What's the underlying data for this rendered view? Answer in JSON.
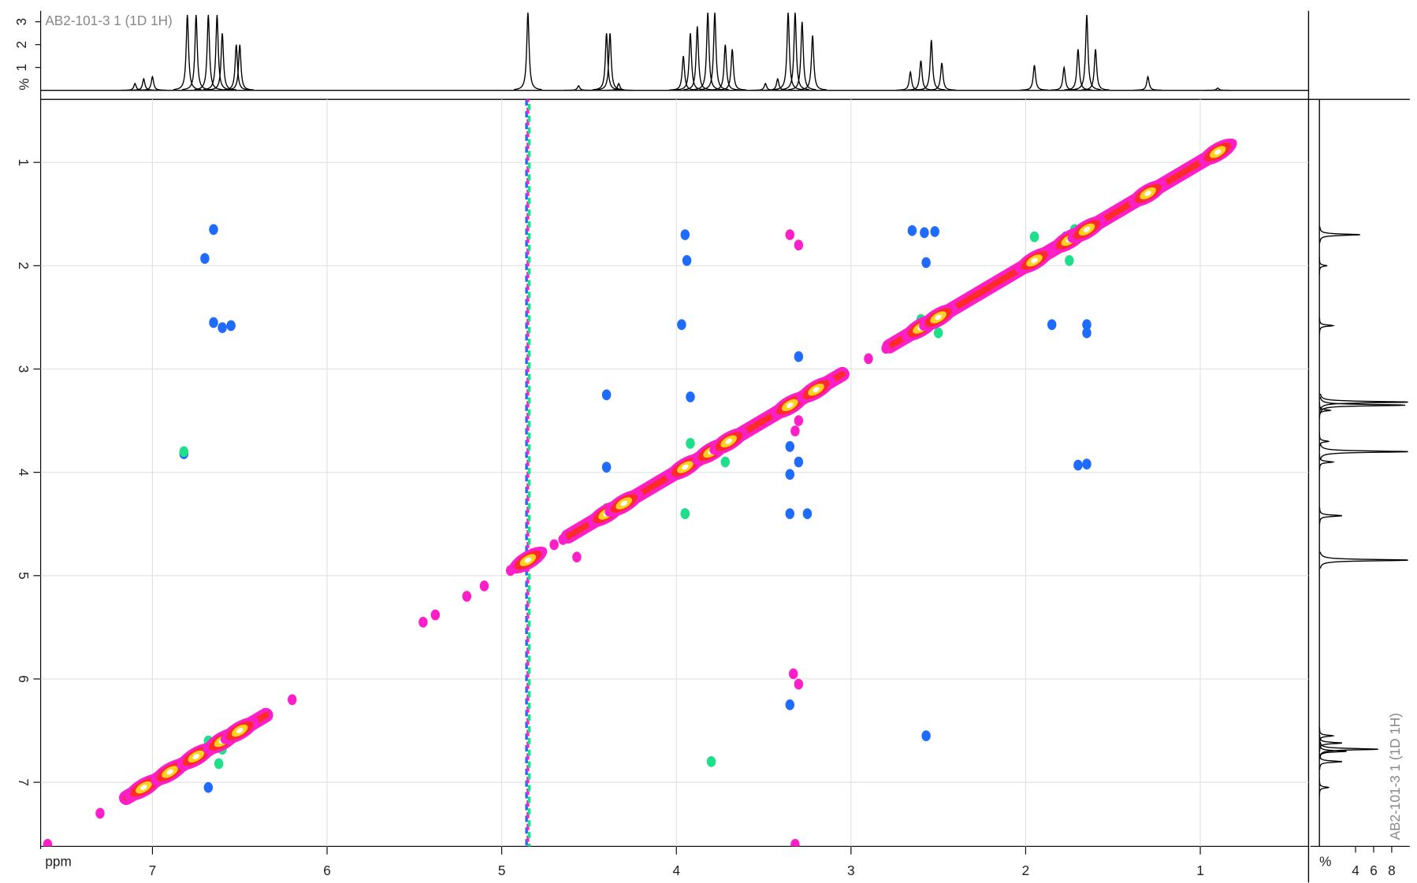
{
  "chart_data": {
    "type": "scatter",
    "title": "AB2-101-3 1 (1D 1H)",
    "x_label": "ppm",
    "xlim": [
      7.64,
      0.38
    ],
    "ylim": [
      0.39,
      7.62
    ],
    "xticks": [
      1,
      2,
      3,
      4,
      5,
      6,
      7
    ],
    "yticks": [
      1,
      2,
      3,
      4,
      5,
      6,
      7
    ],
    "grid": true,
    "series": [
      {
        "color": "#1f6bff",
        "x": [
          6.65,
          6.7,
          6.65,
          6.6,
          6.55,
          6.82,
          6.68,
          3.95,
          3.94,
          3.97,
          2.65,
          2.58,
          2.52,
          2.57,
          1.77,
          1.65,
          1.65,
          1.65,
          1.7,
          1.85,
          4.4,
          4.4,
          3.92,
          3.35,
          3.3,
          3.35,
          3.25,
          3.95,
          3.35,
          2.57,
          3.3,
          3.35
        ],
        "y": [
          1.65,
          1.93,
          2.55,
          2.6,
          2.58,
          3.82,
          7.05,
          1.7,
          1.95,
          2.57,
          1.66,
          1.68,
          1.67,
          1.97,
          1.72,
          2.57,
          2.65,
          3.92,
          3.93,
          2.57,
          3.25,
          3.95,
          3.27,
          3.75,
          3.9,
          4.4,
          4.4,
          4.4,
          6.25,
          6.55,
          2.88,
          4.02
        ]
      },
      {
        "color": "#1fe08a",
        "x": [
          6.68,
          6.62,
          3.92,
          3.72,
          1.95,
          1.75,
          1.72,
          2.6,
          2.5,
          3.95,
          3.8,
          6.82,
          4.4,
          6.6
        ],
        "y": [
          6.6,
          6.82,
          3.72,
          3.9,
          1.72,
          1.95,
          1.65,
          2.52,
          2.65,
          4.4,
          6.8,
          3.8,
          4.35,
          6.68
        ]
      },
      {
        "color": "#ff1fc8",
        "x": [
          3.35,
          3.3,
          4.57,
          3.3,
          3.33,
          3.32,
          3.32,
          3.3,
          7.6,
          7.3,
          6.2,
          5.45,
          5.38,
          5.2,
          5.1,
          4.95,
          4.7,
          4.65,
          2.9,
          2.8
        ],
        "y": [
          1.7,
          1.8,
          4.82,
          6.05,
          5.95,
          7.6,
          3.6,
          3.5,
          7.6,
          7.3,
          6.2,
          5.45,
          5.38,
          5.2,
          5.1,
          4.95,
          4.7,
          4.65,
          2.9,
          2.8
        ]
      }
    ],
    "diagonal": {
      "colors": [
        "#ff1fc8",
        "#ff2a2a",
        "#ffd21f",
        "#ffffff"
      ],
      "x": [
        7.05,
        6.9,
        6.75,
        6.6,
        6.5,
        4.85,
        4.4,
        4.3,
        3.95,
        3.8,
        3.7,
        3.35,
        3.2,
        2.6,
        2.5,
        1.95,
        1.75,
        1.65,
        1.3,
        0.9
      ]
    },
    "diagonal_bands": [
      [
        7.15,
        6.35
      ],
      [
        4.62,
        3.05
      ],
      [
        2.78,
        0.85
      ]
    ],
    "ridge": {
      "x": 4.85,
      "colors": [
        "#1f6bff",
        "#ff1fc8",
        "#1fe08a"
      ]
    },
    "top_trace": {
      "label": "%",
      "ylim": [
        0,
        3.4
      ],
      "yticks": [
        1,
        2,
        3
      ],
      "color": "#000000",
      "x": [
        7.1,
        7.05,
        7.0,
        6.8,
        6.75,
        6.68,
        6.63,
        6.6,
        6.52,
        6.5,
        4.85,
        4.56,
        4.4,
        4.38,
        4.33,
        3.96,
        3.92,
        3.88,
        3.82,
        3.78,
        3.72,
        3.68,
        3.49,
        3.42,
        3.36,
        3.32,
        3.28,
        3.22,
        2.66,
        2.6,
        2.54,
        2.48,
        1.95,
        1.78,
        1.7,
        1.65,
        1.6,
        1.3,
        0.9
      ],
      "values": [
        0.3,
        0.5,
        0.6,
        3.3,
        3.3,
        3.3,
        3.3,
        2.5,
        2.0,
        2.0,
        3.4,
        0.2,
        2.5,
        2.5,
        0.3,
        1.5,
        2.5,
        2.8,
        3.4,
        3.4,
        2.0,
        1.8,
        0.3,
        0.5,
        3.4,
        3.4,
        3.0,
        2.4,
        0.8,
        1.3,
        2.2,
        1.2,
        1.1,
        1.0,
        1.8,
        3.3,
        1.8,
        0.6,
        0.1
      ]
    },
    "side_trace": {
      "label": "%",
      "xlim": [
        0,
        10
      ],
      "xticks": [
        4,
        6,
        8
      ],
      "color": "#000000",
      "y": [
        1.7,
        2.0,
        2.58,
        3.32,
        3.35,
        3.4,
        3.7,
        3.8,
        3.9,
        4.42,
        4.85,
        6.55,
        6.62,
        6.68,
        6.7,
        6.8,
        7.05
      ],
      "values": [
        4.5,
        0.8,
        1.5,
        10,
        9.5,
        1.2,
        1,
        10,
        1.5,
        2.5,
        10,
        1.5,
        2.5,
        6.5,
        3,
        2.5,
        1
      ]
    }
  }
}
